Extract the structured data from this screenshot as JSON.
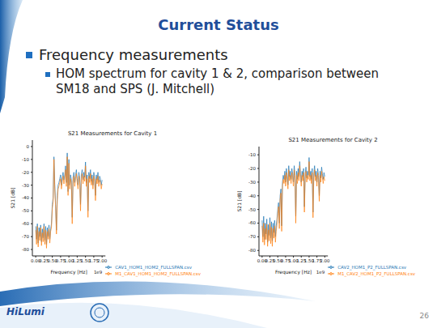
{
  "slide": {
    "title": "Current Status",
    "bullets": [
      {
        "text": "Frequency measurements",
        "sub": [
          "HOM spectrum for cavity 1 & 2, comparison between SM18 and SPS (J. Mitchell)"
        ]
      }
    ],
    "footer": {
      "logo": "HiLumi",
      "page": "26"
    }
  },
  "chart_data": [
    {
      "type": "line",
      "title": "S21 Measurements for Cavity 1",
      "x_label": "Frequency [Hz]",
      "y_label": "S21 [dB]",
      "annotations": [
        "1e9"
      ],
      "legend": "bottom",
      "grid": false,
      "xlim": [
        -0.1,
        2.1
      ],
      "xticks": [
        {
          "value": 0,
          "label": "0.00"
        },
        {
          "value": 0.25,
          "label": "0.25"
        },
        {
          "value": 0.5,
          "label": "0.50"
        },
        {
          "value": 0.75,
          "label": "0.75"
        },
        {
          "value": 1,
          "label": "1.00"
        },
        {
          "value": 1.25,
          "label": "1.25"
        },
        {
          "value": 1.5,
          "label": "1.50"
        },
        {
          "value": 1.75,
          "label": "1.75"
        },
        {
          "value": 2,
          "label": "2.00"
        }
      ],
      "ylim": [
        -85,
        5
      ],
      "yticks": [
        0,
        -10,
        -20,
        -30,
        -40,
        -50,
        -60,
        -70,
        -80
      ],
      "x": [
        0,
        0.025,
        0.05,
        0.075,
        0.1,
        0.125,
        0.15,
        0.175,
        0.2,
        0.225,
        0.25,
        0.275,
        0.3,
        0.325,
        0.35,
        0.375,
        0.4,
        0.425,
        0.45,
        0.475,
        0.5,
        0.525,
        0.55,
        0.575,
        0.6,
        0.625,
        0.65,
        0.675,
        0.7,
        0.725,
        0.75,
        0.775,
        0.8,
        0.825,
        0.85,
        0.875,
        0.9,
        0.925,
        0.95,
        0.975,
        1,
        1.025,
        1.05,
        1.075,
        1.1,
        1.125,
        1.15,
        1.175,
        1.2,
        1.225,
        1.25,
        1.275,
        1.3,
        1.325,
        1.35,
        1.375,
        1.4,
        1.425,
        1.45,
        1.475,
        1.5,
        1.525,
        1.55,
        1.575,
        1.6,
        1.625,
        1.65,
        1.675,
        1.7,
        1.725,
        1.75,
        1.775,
        1.8,
        1.825,
        1.85,
        1.875,
        1.9,
        1.925,
        1.95,
        1.975,
        2
      ],
      "series": [
        {
          "name": "CAV1_HOM1_HOM2_FULLSPAN.csv",
          "color": "#1f77b4",
          "values": [
            -62,
            -72,
            -60,
            -75,
            -63,
            -70,
            -61,
            -74,
            -64,
            -71,
            -60,
            -73,
            -62,
            -76,
            -63,
            -70,
            -61,
            -72,
            -64,
            -60,
            -45,
            -40,
            -8,
            -30,
            -45,
            -65,
            -38,
            -30,
            -28,
            -25,
            -22,
            -30,
            -24,
            -20,
            -26,
            -22,
            -15,
            -28,
            -5,
            -35,
            -10,
            -30,
            -22,
            -26,
            -55,
            -24,
            -20,
            -28,
            -22,
            -18,
            -25,
            -30,
            -20,
            -24,
            -45,
            -22,
            -18,
            -26,
            -20,
            -24,
            -12,
            -28,
            -22,
            -50,
            -20,
            -25,
            -18,
            -27,
            -22,
            -30,
            -20,
            -24,
            -38,
            -22,
            -26,
            -20,
            -28,
            -23,
            -25,
            -30,
            -26
          ]
        },
        {
          "name": "M1_CAV1_HOM1_HOM2_FULLSPAN.csv",
          "color": "#ff7f0e",
          "values": [
            -65,
            -76,
            -62,
            -78,
            -66,
            -73,
            -63,
            -77,
            -67,
            -74,
            -62,
            -76,
            -65,
            -79,
            -66,
            -72,
            -64,
            -75,
            -66,
            -63,
            -48,
            -43,
            -10,
            -33,
            -48,
            -68,
            -42,
            -33,
            -31,
            -28,
            -25,
            -33,
            -27,
            -23,
            -29,
            -25,
            -18,
            -31,
            -8,
            -38,
            -13,
            -33,
            -25,
            -29,
            -60,
            -27,
            -23,
            -31,
            -25,
            -21,
            -28,
            -33,
            -23,
            -27,
            -50,
            -25,
            -21,
            -29,
            -23,
            -27,
            -15,
            -31,
            -25,
            -55,
            -23,
            -28,
            -21,
            -30,
            -25,
            -33,
            -23,
            -27,
            -42,
            -25,
            -29,
            -23,
            -31,
            -26,
            -28,
            -33,
            -29
          ]
        }
      ]
    },
    {
      "type": "line",
      "title": "S21 Measurements for Cavity 2",
      "x_label": "Frequency [Hz]",
      "y_label": "S21 [dB]",
      "annotations": [
        "1e9"
      ],
      "legend": "bottom",
      "grid": false,
      "xlim": [
        -0.1,
        2.1
      ],
      "xticks": [
        {
          "value": 0,
          "label": "0.00"
        },
        {
          "value": 0.25,
          "label": "0.25"
        },
        {
          "value": 0.5,
          "label": "0.50"
        },
        {
          "value": 0.75,
          "label": "0.75"
        },
        {
          "value": 1,
          "label": "1.00"
        },
        {
          "value": 1.25,
          "label": "1.25"
        },
        {
          "value": 1.5,
          "label": "1.50"
        },
        {
          "value": 1.75,
          "label": "1.75"
        },
        {
          "value": 2,
          "label": "2.00"
        }
      ],
      "ylim": [
        -84,
        -4
      ],
      "yticks": [
        -10,
        -20,
        -30,
        -40,
        -50,
        -60,
        -70,
        -80
      ],
      "x": [
        0,
        0.025,
        0.05,
        0.075,
        0.1,
        0.125,
        0.15,
        0.175,
        0.2,
        0.225,
        0.25,
        0.275,
        0.3,
        0.325,
        0.35,
        0.375,
        0.4,
        0.425,
        0.45,
        0.475,
        0.5,
        0.525,
        0.55,
        0.575,
        0.6,
        0.625,
        0.65,
        0.675,
        0.7,
        0.725,
        0.75,
        0.775,
        0.8,
        0.825,
        0.85,
        0.875,
        0.9,
        0.925,
        0.95,
        0.975,
        1,
        1.025,
        1.05,
        1.075,
        1.1,
        1.125,
        1.15,
        1.175,
        1.2,
        1.225,
        1.25,
        1.275,
        1.3,
        1.325,
        1.35,
        1.375,
        1.4,
        1.425,
        1.45,
        1.475,
        1.5,
        1.525,
        1.55,
        1.575,
        1.6,
        1.625,
        1.65,
        1.675,
        1.7,
        1.725,
        1.75,
        1.775,
        1.8,
        1.825,
        1.85,
        1.875,
        1.9,
        1.925,
        1.95,
        1.975,
        2
      ],
      "series": [
        {
          "name": "CAV2_HOM1_P2_FULLSPAN.csv",
          "color": "#1f77b4",
          "values": [
            -58,
            -70,
            -55,
            -72,
            -60,
            -68,
            -57,
            -74,
            -61,
            -69,
            -56,
            -71,
            -59,
            -73,
            -60,
            -67,
            -58,
            -70,
            -62,
            -57,
            -50,
            -45,
            -60,
            -40,
            -35,
            -62,
            -30,
            -25,
            -28,
            -22,
            -30,
            -20,
            -25,
            -32,
            -18,
            -26,
            -22,
            -28,
            -20,
            -24,
            -30,
            -18,
            -25,
            -55,
            -22,
            -28,
            -20,
            -26,
            -15,
            -24,
            -30,
            -22,
            -26,
            -20,
            -48,
            -24,
            -19,
            -27,
            -22,
            -25,
            -12,
            -26,
            -22,
            -28,
            -20,
            -52,
            -24,
            -18,
            -26,
            -22,
            -30,
            -20,
            -25,
            -40,
            -22,
            -27,
            -19,
            -24,
            -28,
            -23,
            -26
          ]
        },
        {
          "name": "M1_CAV2_HOM1_P2_FULLSPAN.csv",
          "color": "#ff7f0e",
          "values": [
            -62,
            -74,
            -60,
            -76,
            -64,
            -72,
            -61,
            -77,
            -65,
            -73,
            -60,
            -75,
            -63,
            -77,
            -64,
            -71,
            -62,
            -74,
            -66,
            -61,
            -53,
            -48,
            -64,
            -43,
            -38,
            -66,
            -33,
            -28,
            -31,
            -25,
            -33,
            -23,
            -28,
            -35,
            -21,
            -29,
            -25,
            -31,
            -23,
            -27,
            -33,
            -21,
            -28,
            -60,
            -25,
            -31,
            -23,
            -29,
            -18,
            -27,
            -33,
            -25,
            -29,
            -23,
            -52,
            -27,
            -22,
            -30,
            -25,
            -28,
            -15,
            -29,
            -25,
            -31,
            -23,
            -56,
            -27,
            -21,
            -29,
            -25,
            -33,
            -23,
            -28,
            -44,
            -25,
            -30,
            -22,
            -27,
            -31,
            -26,
            -29
          ]
        }
      ]
    }
  ]
}
